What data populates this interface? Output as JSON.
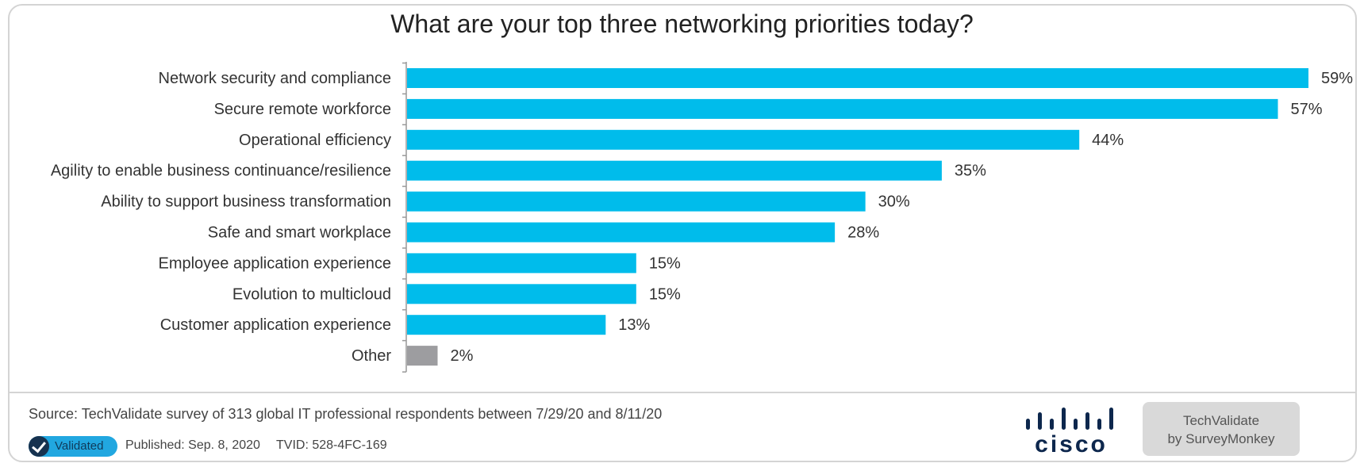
{
  "chart_data": {
    "type": "bar",
    "orientation": "horizontal",
    "title": "What are your top three networking priorities today?",
    "categories": [
      "Network security and compliance",
      "Secure remote workforce",
      "Operational efficiency",
      "Agility to enable business continuance/resilience",
      "Ability to support business transformation",
      "Safe and smart workplace",
      "Employee application experience",
      "Evolution to multicloud",
      "Customer application experience",
      "Other"
    ],
    "values": [
      59,
      57,
      44,
      35,
      30,
      28,
      15,
      15,
      13,
      2
    ],
    "value_labels": [
      "59%",
      "57%",
      "44%",
      "35%",
      "30%",
      "28%",
      "15%",
      "15%",
      "13%",
      "2%"
    ],
    "unit": "%",
    "xlim": [
      0,
      59
    ],
    "grid": false,
    "colors": {
      "bar": "#00bceb",
      "other_bar": "#9d9da0",
      "axis": "#999999"
    }
  },
  "footer": {
    "source": "Source: TechValidate survey of 313 global IT professional respondents between 7/29/20 and 8/11/20",
    "validated_label": "Validated",
    "published": "Published: Sep. 8, 2020",
    "tvid": "TVID: 528-4FC-169",
    "cisco_logo": "cisco",
    "badge_line1": "TechValidate",
    "badge_line2": "by SurveyMonkey"
  },
  "icons": {
    "validated": "checkmark-icon",
    "logo": "cisco-logo"
  }
}
